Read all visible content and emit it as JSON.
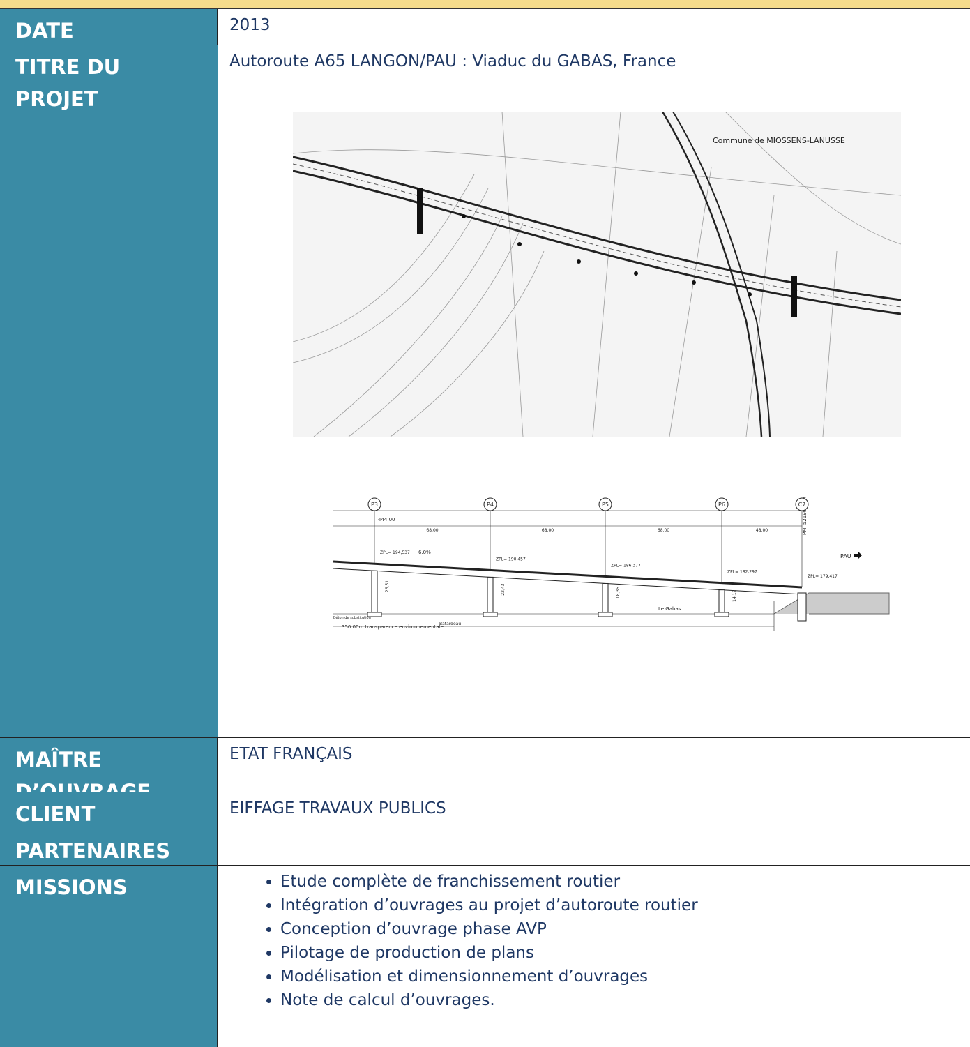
{
  "rows": [
    {
      "label": "DATE",
      "value": "2013"
    },
    {
      "label": "TITRE DU PROJET",
      "value": "Autoroute A65 LANGON/PAU : Viaduc du GABAS, France"
    },
    {
      "label": "MAÎTRE D’OUVRAGE",
      "value": "ETAT FRANÇAIS"
    },
    {
      "label": "CLIENT",
      "value": "EIFFAGE TRAVAUX PUBLICS"
    },
    {
      "label": "PARTENAIRES"
    },
    {
      "label": "MISSIONS",
      "items": [
        "Etude complète de franchissement routier",
        "Intégration d’ouvrages au projet d’autoroute routier",
        "Conception d’ouvrage phase AVP",
        "Pilotage de production de plans",
        "Modélisation et dimensionnement d’ouvrages",
        "Note de calcul d’ouvrages."
      ]
    }
  ],
  "plan": {
    "commune": "Commune de MIOSSENS-LANUSSE"
  },
  "elevation": {
    "piers": [
      "P3",
      "P4",
      "P5",
      "P6",
      "C7"
    ],
    "total": "444.00",
    "spans": [
      "68.00",
      "68.00",
      "68.00",
      "48.00"
    ],
    "zpl": [
      "ZPL= 194,537",
      "ZPL= 190,457",
      "ZPL= 186,377",
      "ZPL= 182,297",
      "ZPL= 179,417"
    ],
    "heights": [
      "26,51",
      "22,43",
      "18,35",
      "14,12"
    ],
    "slope": "6.0%",
    "pm": "PM: 521906.450",
    "direction": "PAU",
    "river": "Le Gabas",
    "cofferdam": "Batardeau",
    "concrete": "Béton de substitution",
    "transparency": "350.00m  transparence environnementale"
  }
}
